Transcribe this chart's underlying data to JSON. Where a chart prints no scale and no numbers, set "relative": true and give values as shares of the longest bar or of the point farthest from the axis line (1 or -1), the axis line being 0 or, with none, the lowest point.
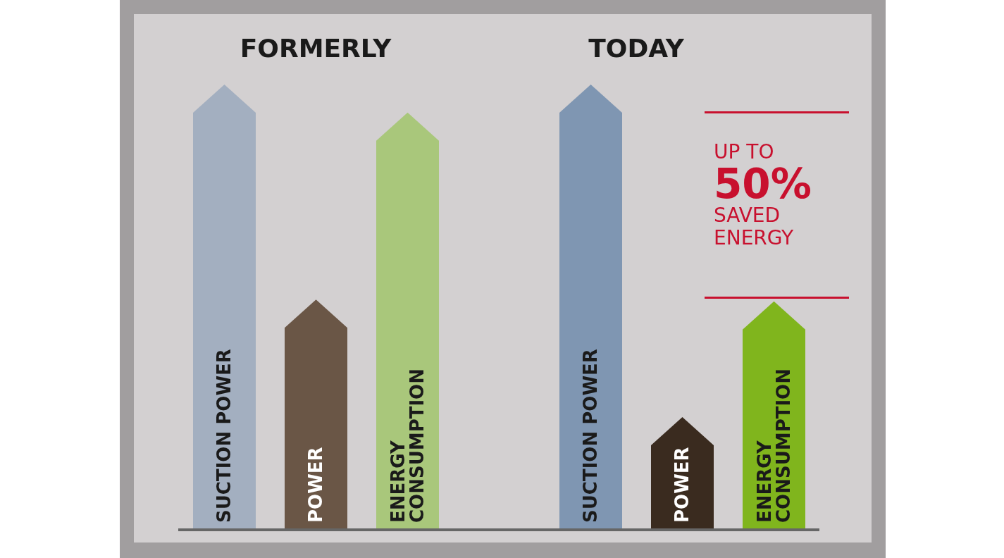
{
  "chart_data": {
    "type": "bar",
    "relative": true,
    "categories": [
      "SUCTION POWER",
      "POWER",
      "ENERGY CONSUMPTION",
      null,
      "SUCTION POWER",
      "POWER",
      "ENERGY CONSUMPTION"
    ],
    "values": [
      1,
      0.517,
      0.937,
      null,
      1,
      0.253,
      0.513
    ],
    "colors": [
      "#a3afc0",
      "#6a5646",
      "#a9c77b",
      "#000000",
      "#7f96b2",
      "#3a2b1f",
      "#80b51d"
    ],
    "annotations": [
      "FORMERLY",
      "TODAY",
      "UP TO\n50%\nSAVED\nENERGY"
    ]
  }
}
